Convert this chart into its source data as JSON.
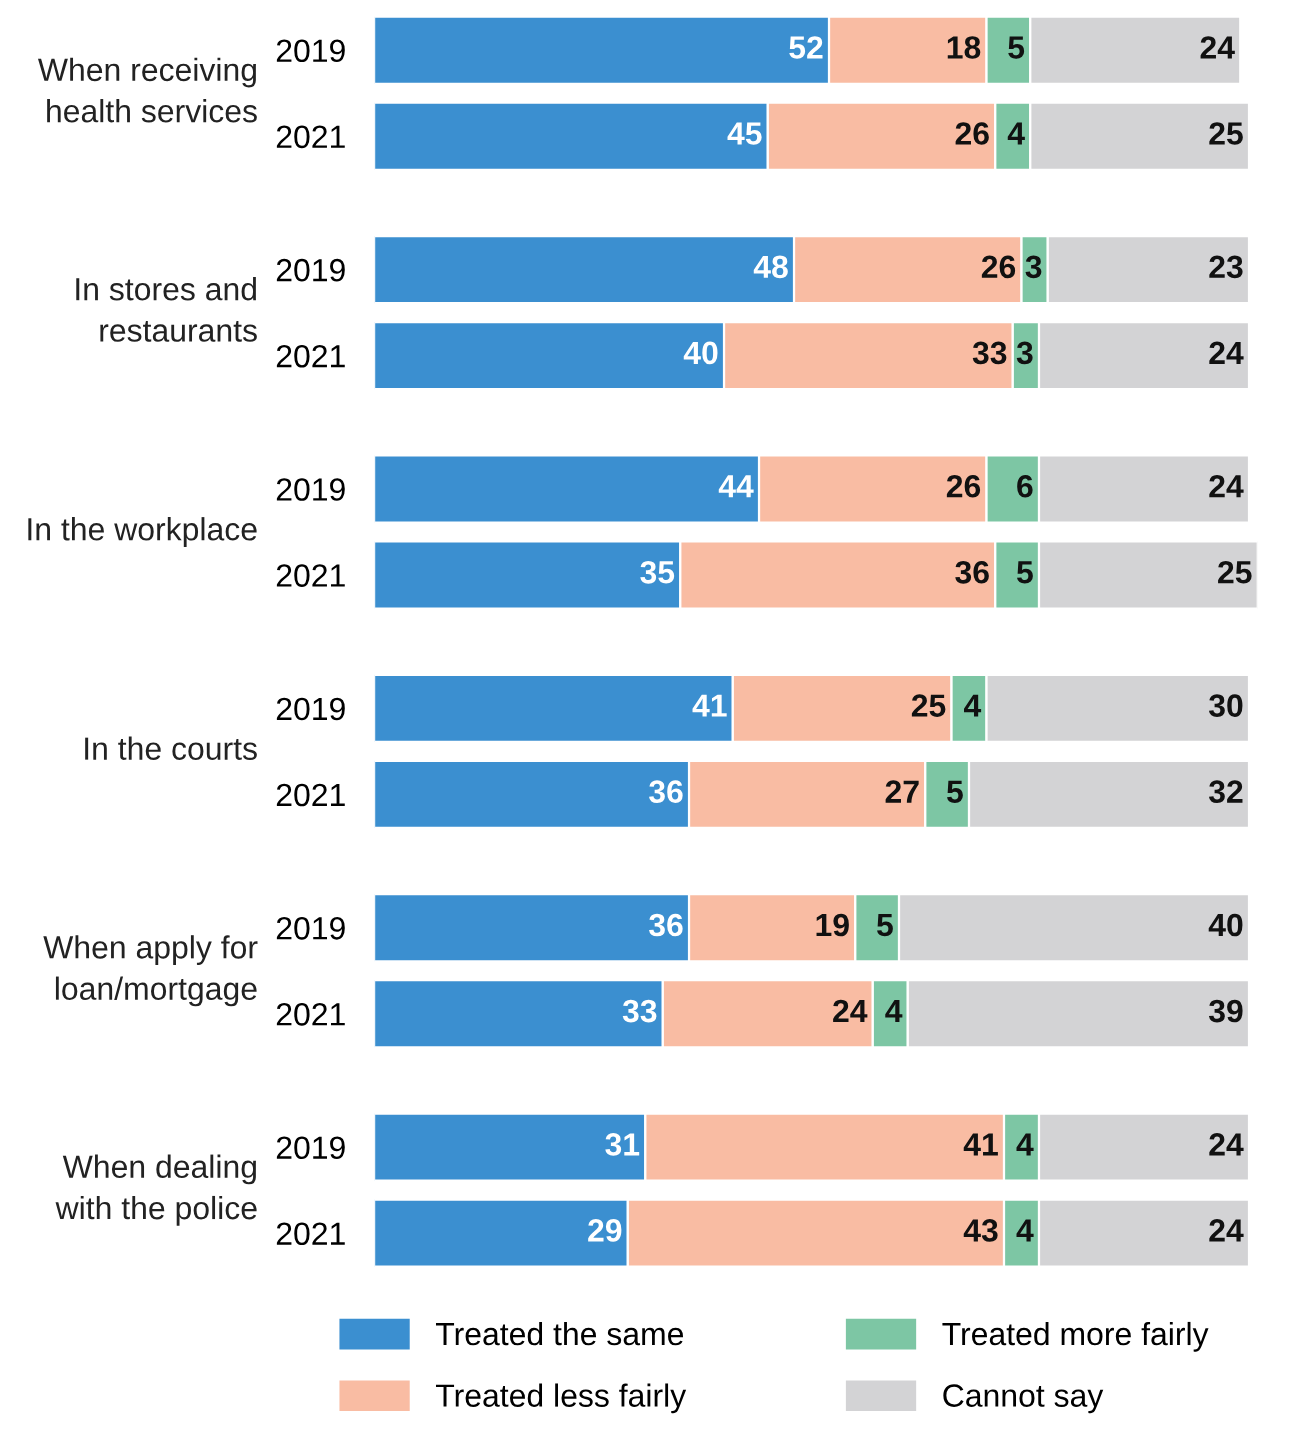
{
  "chart_data": {
    "type": "bar",
    "orientation": "horizontal",
    "stacked": true,
    "data_labels": true,
    "legend": "bottom",
    "grid": false,
    "categories": [
      "2019",
      "2021",
      "2019",
      "2021",
      "2019",
      "2021",
      "2019",
      "2021",
      "2019",
      "2021",
      "2019",
      "2021"
    ],
    "annotations": [
      "When receiving\nhealth services",
      "In stores and\nrestaurants",
      "In the workplace",
      "In the courts",
      "When apply for\nloan/mortgage",
      "When dealing\nwith the police"
    ],
    "series": [
      {
        "name": "Treated the same",
        "color": "#3b8fd0",
        "values": [
          52,
          45,
          48,
          40,
          44,
          35,
          41,
          36,
          36,
          33,
          31,
          29
        ]
      },
      {
        "name": "Treated less fairly",
        "color": "#f9bca3",
        "values": [
          18,
          26,
          26,
          33,
          26,
          36,
          25,
          27,
          19,
          24,
          41,
          43
        ]
      },
      {
        "name": "Treated more fairly",
        "color": "#7dc6a4",
        "values": [
          5,
          4,
          3,
          3,
          6,
          5,
          4,
          5,
          5,
          4,
          4,
          4
        ]
      },
      {
        "name": "Cannot say",
        "color": "#d3d3d5",
        "values": [
          24,
          25,
          23,
          24,
          24,
          25,
          30,
          32,
          40,
          39,
          24,
          24
        ]
      }
    ]
  }
}
